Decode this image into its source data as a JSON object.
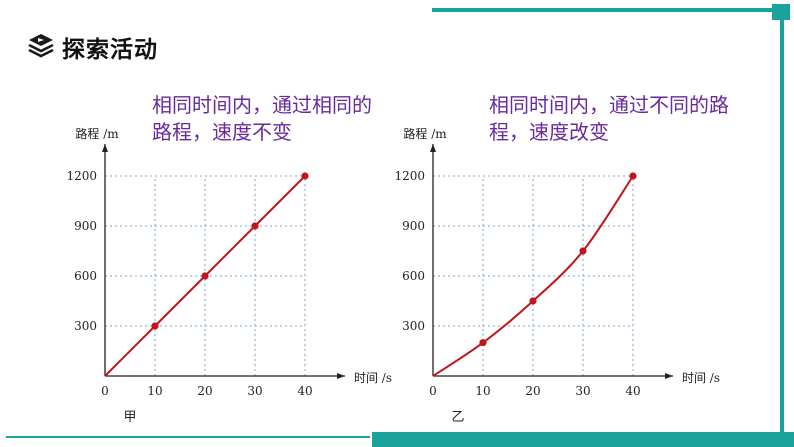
{
  "header": {
    "title": "探索活动",
    "icon": "stacked-layers-icon"
  },
  "annotations": {
    "left": [
      "相同时间内，通过相同的",
      "路程，速度不变"
    ],
    "right": [
      "相同时间内，通过不同的路",
      "程，速度改变"
    ]
  },
  "colors": {
    "accent_teal": "#1aa39a",
    "curve_red": "#c0161d",
    "annot_purple": "#6a2a9c",
    "grid_blue": "#7fa6c7"
  },
  "chart_data": [
    {
      "type": "line",
      "caption": "甲",
      "xlabel": "时间 /s",
      "ylabel": "路程 /m",
      "xlim": [
        0,
        40
      ],
      "ylim": [
        0,
        1200
      ],
      "x_ticks": [
        0,
        10,
        20,
        30,
        40
      ],
      "y_ticks": [
        300,
        600,
        900,
        1200
      ],
      "grid": true,
      "series": [
        {
          "values": [
            [
              0,
              0
            ],
            [
              10,
              300
            ],
            [
              20,
              600
            ],
            [
              30,
              900
            ],
            [
              40,
              1200
            ]
          ]
        }
      ]
    },
    {
      "type": "line",
      "caption": "乙",
      "xlabel": "时间 /s",
      "ylabel": "路程 /m",
      "xlim": [
        0,
        40
      ],
      "ylim": [
        0,
        1200
      ],
      "x_ticks": [
        0,
        10,
        20,
        30,
        40
      ],
      "y_ticks": [
        300,
        600,
        900,
        1200
      ],
      "grid": true,
      "series": [
        {
          "values": [
            [
              0,
              0
            ],
            [
              10,
              200
            ],
            [
              20,
              450
            ],
            [
              30,
              750
            ],
            [
              40,
              1200
            ]
          ]
        }
      ]
    }
  ]
}
